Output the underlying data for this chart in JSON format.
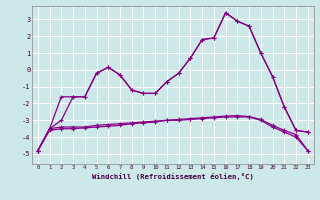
{
  "xlabel": "Windchill (Refroidissement éolien,°C)",
  "background_color": "#cce8e8",
  "grid_color": "#aacccc",
  "line_color": "#880088",
  "x_ticks": [
    0,
    1,
    2,
    3,
    4,
    5,
    6,
    7,
    8,
    9,
    10,
    11,
    12,
    13,
    14,
    15,
    16,
    17,
    18,
    19,
    20,
    21,
    22,
    23
  ],
  "y_ticks": [
    -5,
    -4,
    -3,
    -2,
    -1,
    0,
    1,
    2,
    3
  ],
  "ylim": [
    -5.6,
    3.8
  ],
  "xlim": [
    -0.5,
    23.5
  ],
  "line1_x": [
    0,
    1,
    2,
    3,
    4,
    5,
    6,
    7,
    8,
    9,
    10,
    11,
    12,
    13,
    14,
    15,
    16,
    17,
    18,
    19,
    20,
    21,
    22,
    23
  ],
  "line1_y": [
    -4.8,
    -3.5,
    -3.4,
    -3.4,
    -3.4,
    -3.3,
    -3.25,
    -3.2,
    -3.15,
    -3.1,
    -3.05,
    -3.0,
    -3.0,
    -2.95,
    -2.9,
    -2.85,
    -2.8,
    -2.8,
    -2.8,
    -3.0,
    -3.4,
    -3.7,
    -4.0,
    -4.8
  ],
  "line2_x": [
    0,
    1,
    2,
    3,
    4,
    5,
    6,
    7,
    8,
    9,
    10,
    11,
    12,
    13,
    14,
    15,
    16,
    17,
    18,
    19,
    20,
    21,
    22,
    23
  ],
  "line2_y": [
    -4.8,
    -3.6,
    -3.5,
    -3.5,
    -3.45,
    -3.4,
    -3.35,
    -3.3,
    -3.2,
    -3.15,
    -3.1,
    -3.0,
    -2.95,
    -2.9,
    -2.85,
    -2.8,
    -2.75,
    -2.72,
    -2.78,
    -2.95,
    -3.3,
    -3.6,
    -3.85,
    -4.8
  ],
  "line3_x": [
    0,
    1,
    2,
    3,
    4,
    5,
    6,
    7,
    8,
    9,
    10,
    11,
    12,
    13,
    14,
    15,
    16,
    17,
    18,
    19,
    20,
    21,
    22,
    23
  ],
  "line3_y": [
    -4.8,
    -3.5,
    -3.0,
    -1.6,
    -1.6,
    -0.2,
    0.15,
    -0.3,
    -1.2,
    -1.4,
    -1.4,
    -0.7,
    -0.2,
    0.7,
    1.8,
    1.9,
    3.4,
    2.9,
    2.6,
    1.0,
    -0.4,
    -2.2,
    -3.6,
    -3.7
  ],
  "line4_x": [
    0,
    1,
    2,
    3,
    4,
    5,
    6,
    7,
    8,
    9,
    10,
    11,
    12,
    13,
    14,
    15,
    16,
    17,
    18,
    19,
    20,
    21,
    22,
    23
  ],
  "line4_y": [
    -4.8,
    -3.5,
    -1.6,
    -1.6,
    -1.6,
    -0.2,
    0.15,
    -0.3,
    -1.2,
    -1.4,
    -1.4,
    -0.7,
    -0.2,
    0.7,
    1.8,
    1.9,
    3.4,
    2.9,
    2.6,
    1.0,
    -0.4,
    -2.2,
    -3.6,
    -3.7
  ]
}
